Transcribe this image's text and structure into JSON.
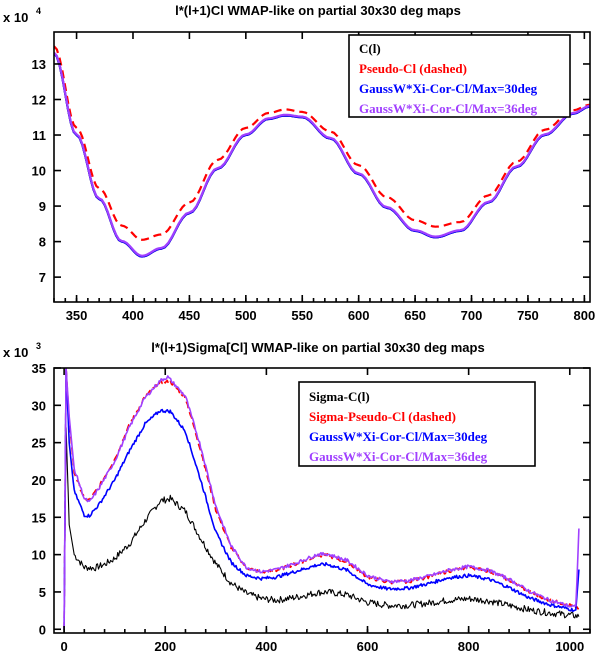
{
  "chart_data": [
    {
      "type": "line",
      "title": "l*(l+1)Cl WMAP-like on partial 30x30 deg maps",
      "y_multiplier_label": "x 10",
      "y_multiplier_exponent": "4",
      "xlim": [
        330,
        805
      ],
      "ylim": [
        6.3,
        13.9
      ],
      "x_ticks": [
        350,
        400,
        450,
        500,
        550,
        600,
        650,
        700,
        750,
        800
      ],
      "y_ticks": [
        7,
        8,
        9,
        10,
        11,
        12,
        13
      ],
      "legend_position": "top-right",
      "series": [
        {
          "name": "C(l)",
          "color": "#000000",
          "dash": false,
          "x": [
            330,
            350,
            370,
            390,
            408,
            425,
            450,
            475,
            500,
            520,
            535,
            550,
            575,
            600,
            625,
            650,
            668,
            690,
            715,
            740,
            765,
            790,
            805
          ],
          "y": [
            13.3,
            11.0,
            9.2,
            8.0,
            7.58,
            7.8,
            8.8,
            10.05,
            11.0,
            11.45,
            11.55,
            11.5,
            10.9,
            9.9,
            8.95,
            8.3,
            8.12,
            8.3,
            9.1,
            10.1,
            11.0,
            11.6,
            11.8
          ]
        },
        {
          "name": "Pseudo-Cl (dashed)",
          "color": "#ff0000",
          "dash": true,
          "x": [
            330,
            350,
            370,
            390,
            408,
            425,
            450,
            475,
            500,
            520,
            535,
            550,
            575,
            600,
            625,
            650,
            668,
            690,
            715,
            740,
            765,
            790,
            805
          ],
          "y": [
            13.5,
            11.2,
            9.5,
            8.45,
            8.05,
            8.2,
            9.1,
            10.3,
            11.2,
            11.62,
            11.72,
            11.65,
            11.1,
            10.15,
            9.25,
            8.6,
            8.42,
            8.55,
            9.3,
            10.25,
            11.15,
            11.7,
            11.85
          ]
        },
        {
          "name": "GaussW*Xi-Cor-Cl/Max=30deg",
          "color": "#0000ff",
          "dash": false,
          "x": [
            330,
            350,
            370,
            390,
            408,
            425,
            450,
            475,
            500,
            520,
            535,
            550,
            575,
            600,
            625,
            650,
            668,
            690,
            715,
            740,
            765,
            790,
            805
          ],
          "y": [
            13.3,
            11.0,
            9.2,
            8.0,
            7.58,
            7.8,
            8.8,
            10.05,
            11.0,
            11.45,
            11.55,
            11.5,
            10.9,
            9.9,
            8.95,
            8.3,
            8.12,
            8.3,
            9.1,
            10.1,
            11.0,
            11.6,
            11.8
          ]
        },
        {
          "name": "GaussW*Xi-Cor-Cl/Max=36deg",
          "color": "#a040ff",
          "dash": false,
          "x": [
            330,
            350,
            370,
            390,
            408,
            425,
            450,
            475,
            500,
            520,
            535,
            550,
            575,
            600,
            625,
            650,
            668,
            690,
            715,
            740,
            765,
            790,
            805
          ],
          "y": [
            13.32,
            11.02,
            9.22,
            8.02,
            7.6,
            7.82,
            8.82,
            10.07,
            11.02,
            11.47,
            11.57,
            11.52,
            10.92,
            9.92,
            8.97,
            8.32,
            8.14,
            8.32,
            9.12,
            10.12,
            11.02,
            11.62,
            11.82
          ]
        }
      ]
    },
    {
      "type": "line",
      "title": "l*(l+1)Sigma[Cl] WMAP-like on partial 30x30 deg maps",
      "y_multiplier_label": "x 10",
      "y_multiplier_exponent": "3",
      "xlim": [
        -20,
        1040
      ],
      "ylim": [
        -0.5,
        35
      ],
      "x_ticks": [
        0,
        200,
        400,
        600,
        800,
        1000
      ],
      "y_ticks": [
        0,
        5,
        10,
        15,
        20,
        25,
        30,
        35
      ],
      "legend_position": "top-right",
      "series": [
        {
          "name": "Sigma-C(l)",
          "color": "#000000",
          "dash": false,
          "x": [
            0,
            4,
            10,
            20,
            40,
            60,
            80,
            100,
            130,
            160,
            190,
            210,
            240,
            270,
            300,
            330,
            360,
            390,
            420,
            460,
            500,
            520,
            560,
            600,
            640,
            680,
            720,
            760,
            800,
            840,
            880,
            920,
            960,
            1000,
            1012,
            1018
          ],
          "y": [
            0,
            27,
            14,
            10,
            8.3,
            8.2,
            8.7,
            9.5,
            11.5,
            14.5,
            17.2,
            17.5,
            15.8,
            12.2,
            8.8,
            6.2,
            4.8,
            4.1,
            3.9,
            4.3,
            4.9,
            5.0,
            4.6,
            3.6,
            3.2,
            3.2,
            3.5,
            3.9,
            4.1,
            3.8,
            3.2,
            2.6,
            2.2,
            1.9,
            1.8,
            1.7
          ]
        },
        {
          "name": "Sigma-Pseudo-Cl (dashed)",
          "color": "#ff0000",
          "dash": true,
          "x": [
            0,
            4,
            10,
            20,
            40,
            50,
            70,
            100,
            130,
            160,
            190,
            210,
            240,
            270,
            300,
            330,
            360,
            390,
            420,
            460,
            500,
            520,
            560,
            600,
            640,
            680,
            720,
            760,
            800,
            840,
            880,
            920,
            960,
            1000,
            1012,
            1018
          ],
          "y": [
            0,
            35,
            28,
            21,
            17.5,
            17.3,
            19.2,
            22.8,
            27.5,
            31.2,
            33.0,
            33.2,
            31.0,
            24.0,
            16.0,
            11.0,
            8.3,
            7.6,
            7.9,
            8.8,
            9.8,
            9.9,
            9.0,
            7.0,
            6.3,
            6.4,
            7.0,
            7.8,
            8.3,
            7.8,
            6.6,
            5.0,
            3.9,
            3.2,
            3.0,
            2.8
          ]
        },
        {
          "name": "GaussW*Xi-Cor-Cl/Max=30deg",
          "color": "#0000ff",
          "dash": false,
          "x": [
            0,
            4,
            10,
            20,
            40,
            50,
            70,
            100,
            130,
            160,
            190,
            210,
            240,
            270,
            300,
            330,
            360,
            390,
            420,
            460,
            500,
            520,
            560,
            600,
            640,
            680,
            720,
            760,
            800,
            840,
            880,
            920,
            960,
            1000,
            1012,
            1018
          ],
          "y": [
            0,
            35,
            25,
            18.5,
            15.3,
            15.2,
            16.8,
            20.0,
            24.0,
            27.5,
            29.3,
            29.2,
            26.5,
            20.0,
            13.0,
            9.0,
            7.2,
            6.8,
            7.0,
            7.8,
            8.6,
            8.7,
            7.9,
            6.0,
            5.4,
            5.5,
            6.1,
            6.9,
            7.2,
            6.7,
            5.6,
            4.2,
            3.3,
            2.7,
            2.5,
            8.0
          ]
        },
        {
          "name": "GaussW*Xi-Cor-Cl/Max=36deg",
          "color": "#a040ff",
          "dash": false,
          "x": [
            0,
            4,
            10,
            20,
            40,
            50,
            70,
            100,
            130,
            160,
            190,
            205,
            240,
            270,
            300,
            330,
            360,
            390,
            420,
            460,
            500,
            520,
            560,
            600,
            640,
            680,
            720,
            760,
            800,
            840,
            880,
            920,
            960,
            1000,
            1012,
            1018
          ],
          "y": [
            0,
            35,
            28.5,
            21.5,
            17.5,
            17.0,
            19.0,
            22.5,
            27.2,
            31.0,
            33.3,
            33.8,
            31.2,
            24.5,
            16.5,
            11.2,
            8.3,
            7.7,
            8.0,
            8.9,
            10.0,
            10.1,
            9.2,
            7.2,
            6.4,
            6.5,
            7.1,
            7.9,
            8.4,
            7.9,
            6.7,
            5.1,
            3.9,
            3.1,
            3.0,
            13.5
          ]
        }
      ]
    }
  ]
}
